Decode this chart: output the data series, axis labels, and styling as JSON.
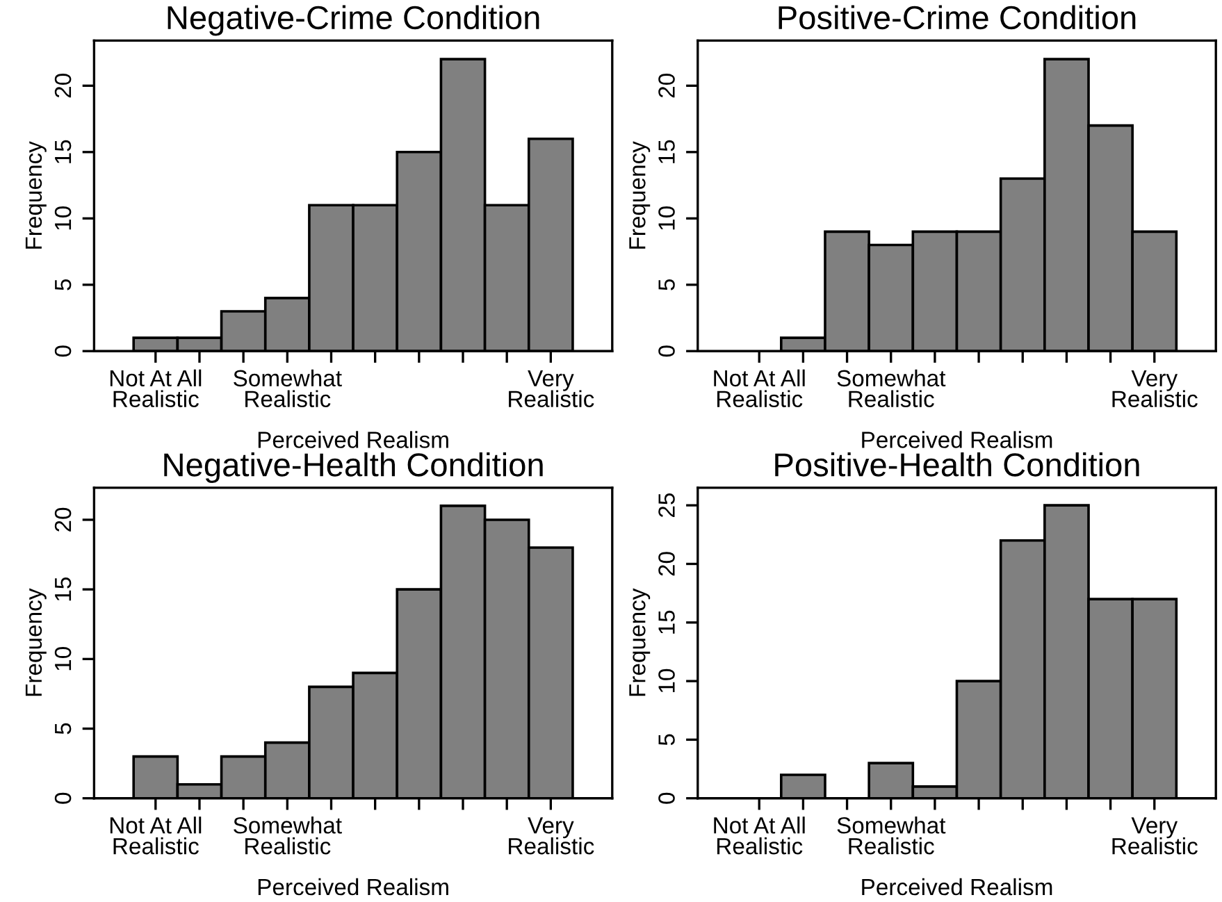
{
  "chart_data": [
    {
      "type": "bar",
      "title": "Negative-Crime Condition",
      "xlabel": "Perceived Realism",
      "ylabel": "Frequency",
      "categories": [
        "Not At All\nRealistic",
        null,
        null,
        "Somewhat\nRealistic",
        null,
        null,
        null,
        null,
        null,
        "Very\nRealistic"
      ],
      "values": [
        1,
        1,
        3,
        4,
        11,
        11,
        15,
        22,
        11,
        16
      ],
      "color": "#808080",
      "ylim": [
        0,
        23.4
      ],
      "yticks": [
        0,
        5,
        10,
        15,
        20
      ]
    },
    {
      "type": "bar",
      "title": "Positive-Crime Condition",
      "xlabel": "Perceived Realism",
      "ylabel": "Frequency",
      "categories": [
        "Not At All\nRealistic",
        null,
        null,
        "Somewhat\nRealistic",
        null,
        null,
        null,
        null,
        null,
        "Very\nRealistic"
      ],
      "values": [
        0,
        1,
        9,
        8,
        9,
        9,
        13,
        22,
        17,
        9
      ],
      "color": "#808080",
      "ylim": [
        0,
        23.4
      ],
      "yticks": [
        0,
        5,
        10,
        15,
        20
      ]
    },
    {
      "type": "bar",
      "title": "Negative-Health Condition",
      "xlabel": "Perceived Realism",
      "ylabel": "Frequency",
      "categories": [
        "Not At All\nRealistic",
        null,
        null,
        "Somewhat\nRealistic",
        null,
        null,
        null,
        null,
        null,
        "Very\nRealistic"
      ],
      "values": [
        3,
        1,
        3,
        4,
        8,
        9,
        15,
        21,
        20,
        18
      ],
      "color": "#808080",
      "ylim": [
        0,
        22.3
      ],
      "yticks": [
        0,
        5,
        10,
        15,
        20
      ]
    },
    {
      "type": "bar",
      "title": "Positive-Health Condition",
      "xlabel": "Perceived Realism",
      "ylabel": "Frequency",
      "categories": [
        "Not At All\nRealistic",
        null,
        null,
        "Somewhat\nRealistic",
        null,
        null,
        null,
        null,
        null,
        "Very\nRealistic"
      ],
      "values": [
        0,
        2,
        0,
        3,
        1,
        10,
        22,
        25,
        17,
        17
      ],
      "color": "#808080",
      "ylim": [
        0,
        26.5
      ],
      "yticks": [
        0,
        5,
        10,
        15,
        20,
        25
      ]
    }
  ]
}
